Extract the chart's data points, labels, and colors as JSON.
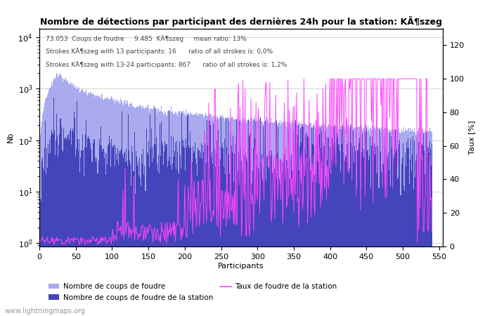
{
  "title": "Nombre de détections par participant des dernières 24h pour la station: KÃ¶szeg",
  "subtitle_line1": "73.053  Coups de foudre     9.485  KÃ¶szeg     mean ratio: 13%",
  "subtitle_line2": "Strokes KÃ¶szeg with 13 participants: 16      ratio of all strokes is: 0,0%",
  "subtitle_line3": "Strokes KÃ¶szeg with 13-24 participants: 867      ratio of all strokes is: 1,2%",
  "xlabel": "Participants",
  "ylabel_left": "Nb",
  "ylabel_right": "Taux [%]",
  "watermark": "www.lightningmaps.org",
  "n_participants": 540,
  "color_global": "#aaaaee",
  "color_station": "#4444bb",
  "color_ratio": "#ff44ff",
  "background_color": "#ffffff",
  "xlim": [
    0,
    555
  ],
  "ylim_right": [
    0,
    130
  ],
  "grid_color": "#cccccc",
  "legend_labels": [
    "Nombre de coups de foudre",
    "Nombre de coups de foudre de la station",
    "Taux de foudre de la station"
  ]
}
